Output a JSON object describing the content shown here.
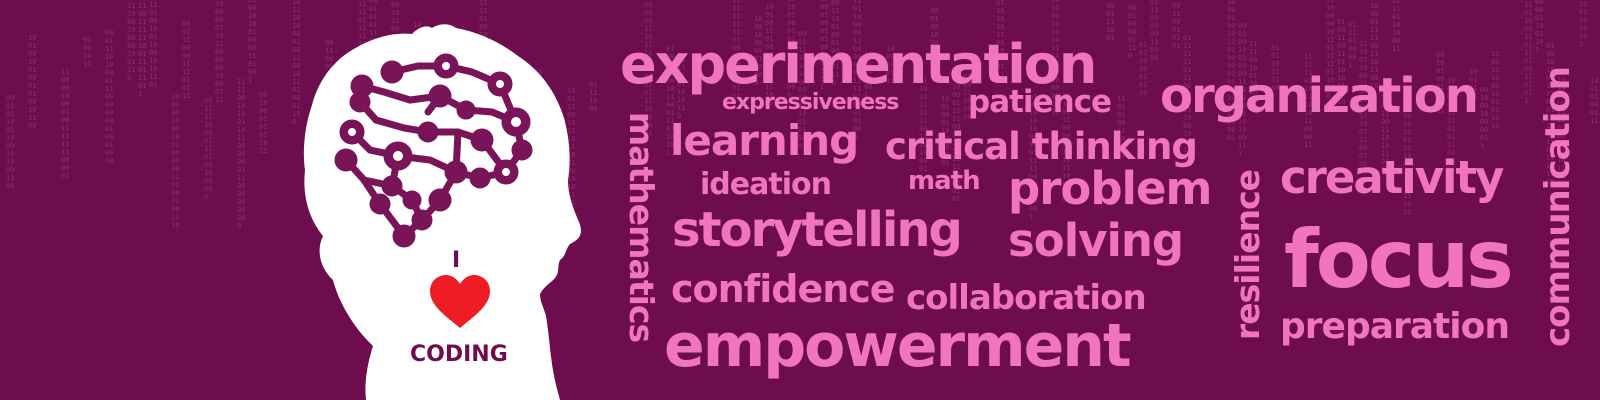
{
  "colors": {
    "background": "#6e0d4d",
    "word": "#f174c1",
    "silhouette": "#ffffff",
    "brain": "#7a1458",
    "heart": "#ee1c25",
    "badge_text": "#6e0d4d"
  },
  "badge": {
    "line1": "I",
    "heart_icon": "heart-icon",
    "line3": "CODING"
  },
  "words": {
    "experimentation": "experimentation",
    "expressiveness": "expressiveness",
    "patience": "patience",
    "organization": "organization",
    "mathematics": "mathematics",
    "learning": "learning",
    "critical_thinking": "critical thinking",
    "ideation": "ideation",
    "math": "math",
    "problem": "problem",
    "resilience": "resilience",
    "creativity": "creativity",
    "communication": "communication",
    "storytelling": "storytelling",
    "solving": "solving",
    "focus": "focus",
    "confidence": "confidence",
    "collaboration": "collaboration",
    "preparation": "preparation",
    "empowerment": "empowerment"
  }
}
